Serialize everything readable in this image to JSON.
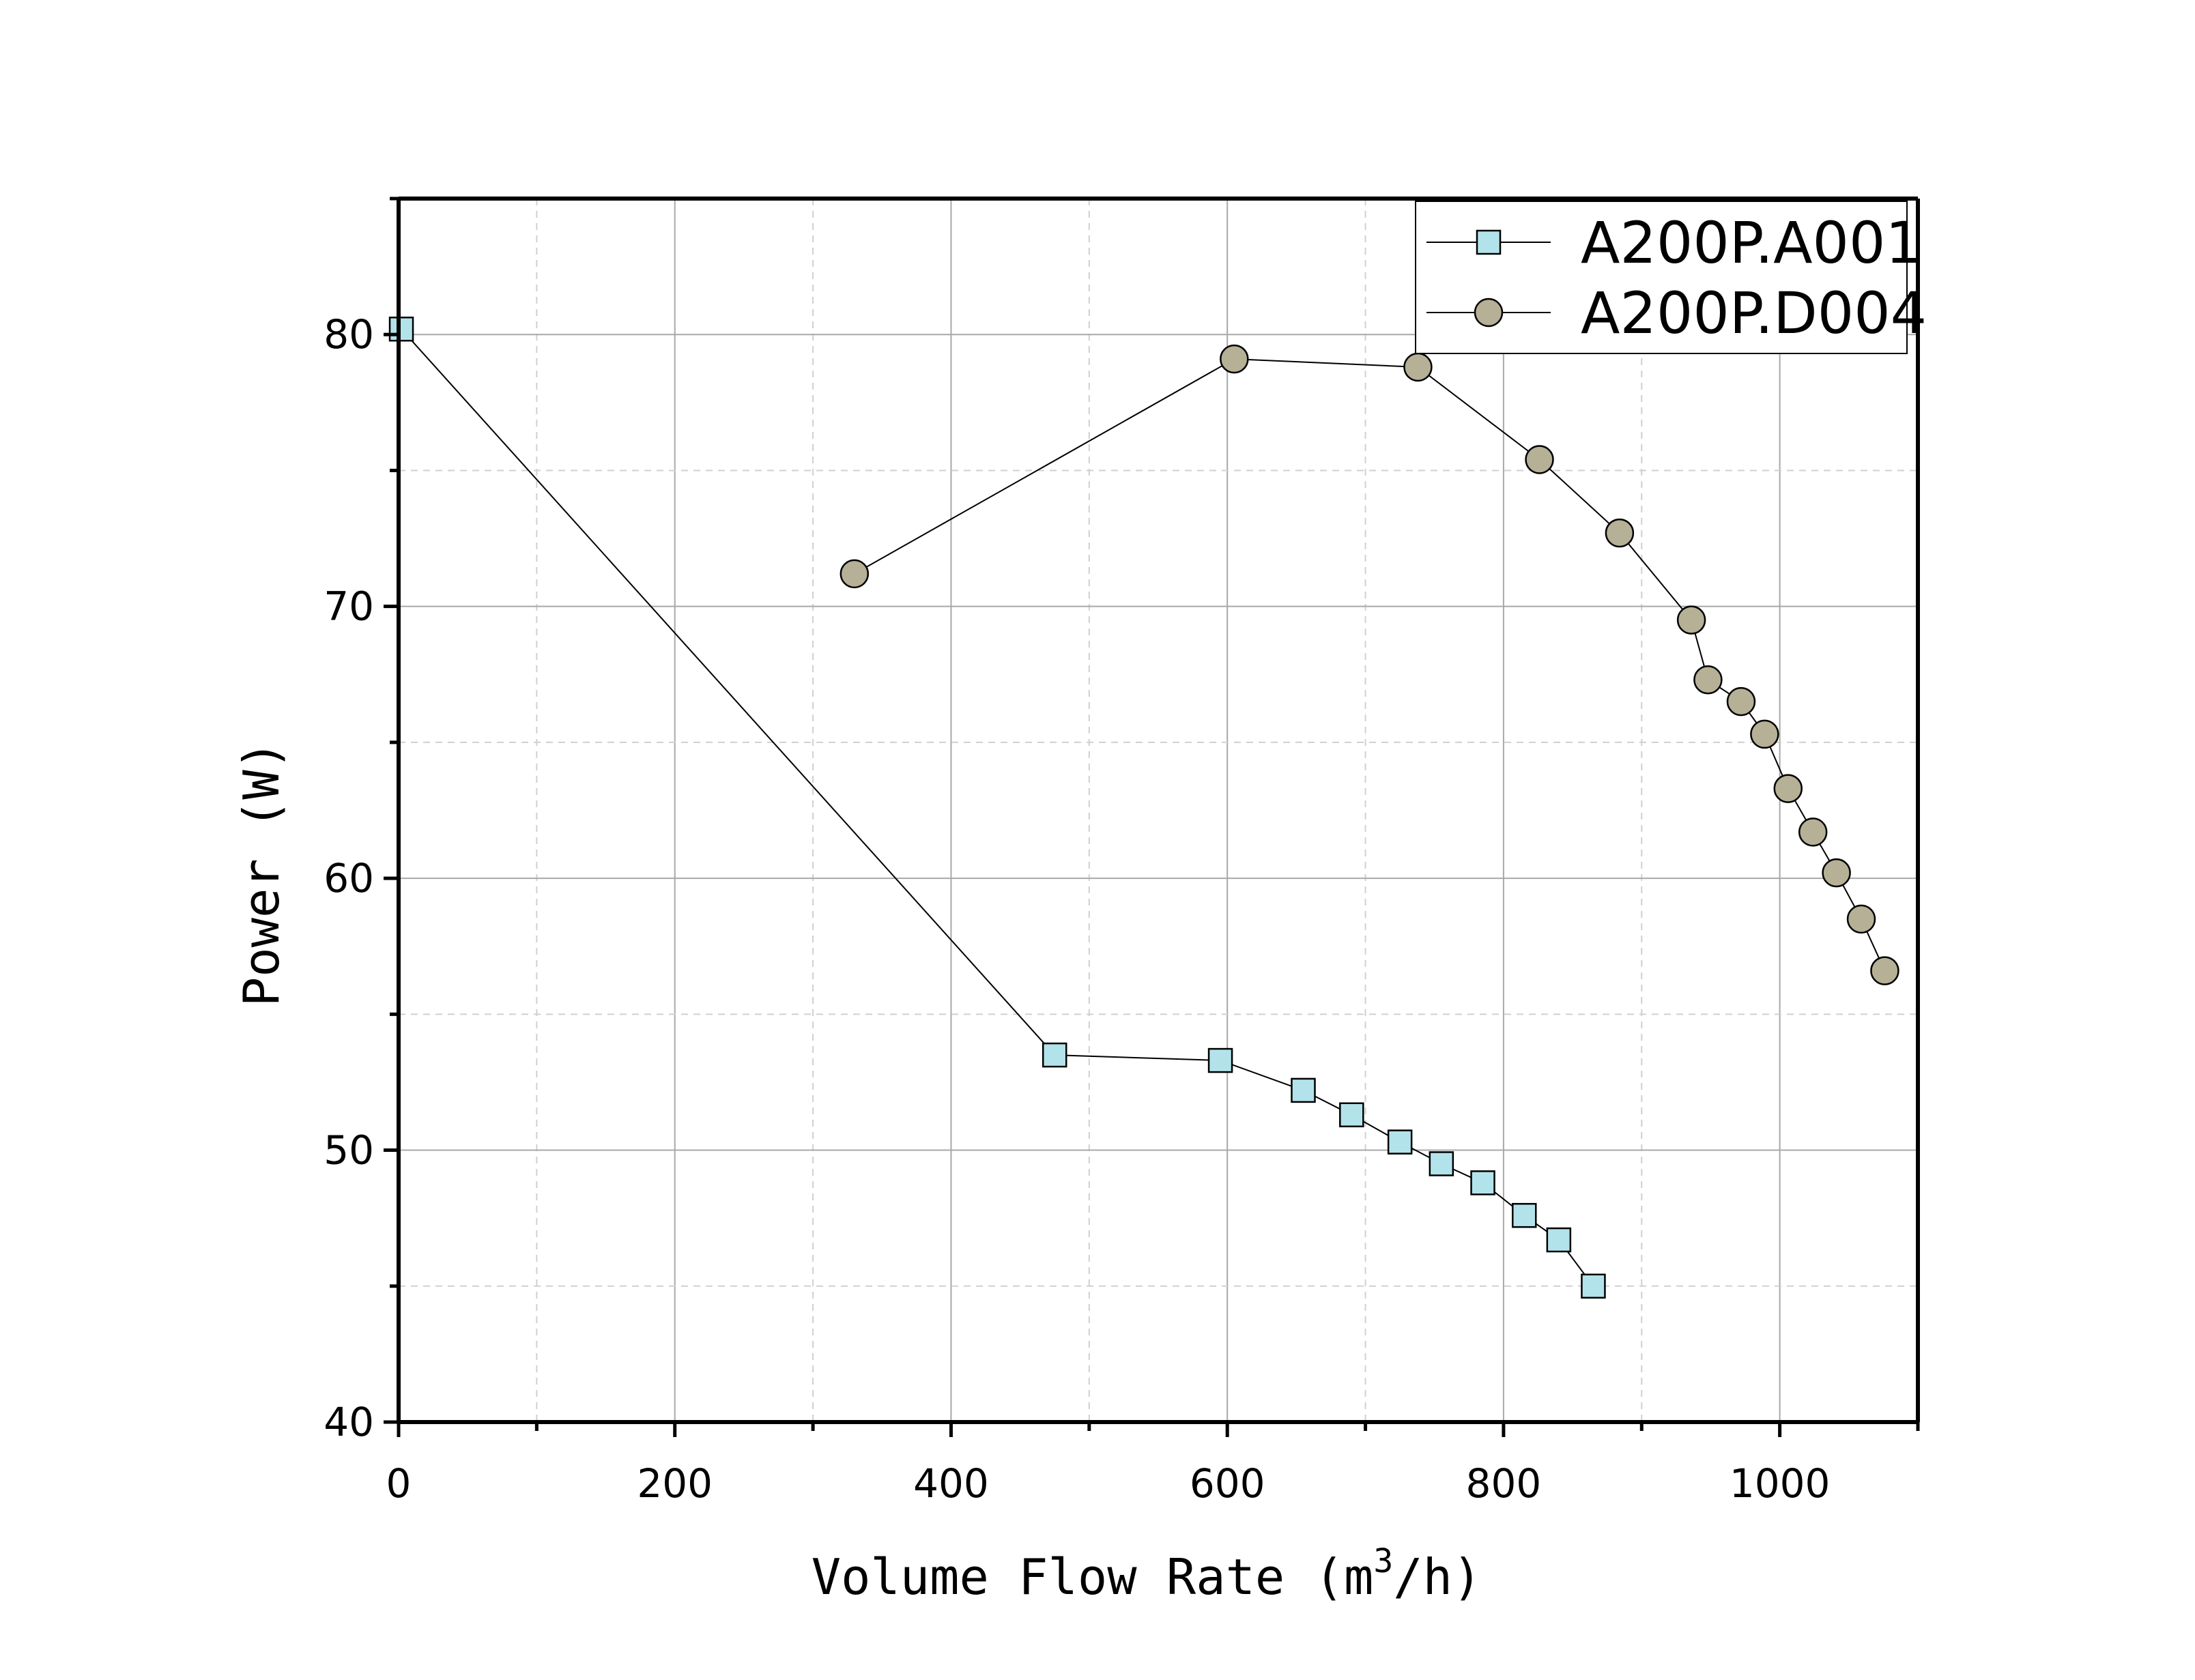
{
  "chart_data": {
    "type": "line",
    "title": "",
    "xlabel": "Volume Flow Rate (m",
    "xlabel_sup": "3",
    "xlabel_tail": "/h)",
    "ylabel": "Power (W)",
    "xlim": [
      0,
      1100
    ],
    "ylim": [
      40,
      85
    ],
    "xticks": [
      0,
      200,
      400,
      600,
      800,
      1000
    ],
    "yticks": [
      40,
      50,
      60,
      70,
      80
    ],
    "grid": true,
    "legend_position": "top-right",
    "series": [
      {
        "name": "A200P.A001",
        "marker": "square",
        "color": "#b3e3ea",
        "points": [
          [
            2,
            80.2
          ],
          [
            475,
            53.5
          ],
          [
            595,
            53.3
          ],
          [
            655,
            52.2
          ],
          [
            690,
            51.3
          ],
          [
            725,
            50.3
          ],
          [
            755,
            49.5
          ],
          [
            785,
            48.8
          ],
          [
            815,
            47.6
          ],
          [
            840,
            46.7
          ],
          [
            865,
            45.0
          ]
        ]
      },
      {
        "name": "A200P.D004",
        "marker": "circle",
        "color": "#b5b096",
        "points": [
          [
            330,
            71.2
          ],
          [
            605,
            79.1
          ],
          [
            738,
            78.8
          ],
          [
            826,
            75.4
          ],
          [
            884,
            72.7
          ],
          [
            936,
            69.5
          ],
          [
            948,
            67.3
          ],
          [
            972,
            66.5
          ],
          [
            989,
            65.3
          ],
          [
            1006,
            63.3
          ],
          [
            1024,
            61.7
          ],
          [
            1041,
            60.2
          ],
          [
            1059,
            58.5
          ],
          [
            1076,
            56.6
          ]
        ]
      }
    ]
  }
}
